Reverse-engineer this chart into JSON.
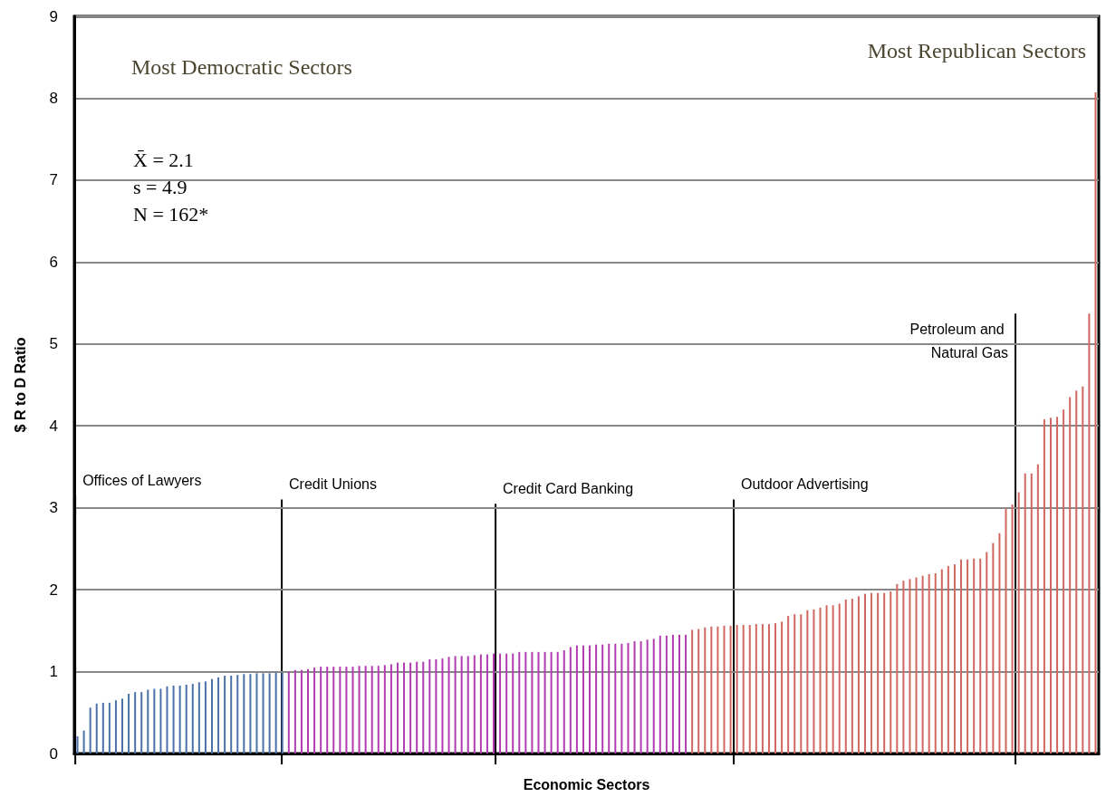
{
  "chart_data": {
    "type": "bar",
    "xlabel": "Economic Sectors",
    "ylabel": "$ R to D Ratio",
    "ylim": [
      0,
      9
    ],
    "yticks": [
      0,
      1,
      2,
      3,
      4,
      5,
      6,
      7,
      8,
      9
    ],
    "tick_labels": "y",
    "grid": "y",
    "categories": [
      null,
      null,
      null,
      null,
      null,
      null,
      null,
      null,
      null,
      null,
      null,
      null,
      null,
      null,
      null,
      null,
      null,
      null,
      null,
      null,
      null,
      null,
      null,
      null,
      null,
      null,
      null,
      null,
      null,
      null,
      null,
      null,
      null,
      null,
      null,
      null,
      null,
      null,
      null,
      null,
      null,
      null,
      null,
      null,
      null,
      null,
      null,
      null,
      null,
      null,
      null,
      null,
      null,
      null,
      null,
      null,
      null,
      null,
      null,
      null,
      null,
      null,
      null,
      null,
      null,
      null,
      null,
      null,
      null,
      null,
      null,
      null,
      null,
      null,
      null,
      null,
      null,
      null,
      null,
      null,
      null,
      null,
      null,
      null,
      null,
      null,
      null,
      null,
      null,
      null,
      null,
      null,
      null,
      null,
      null,
      null,
      null,
      null,
      null,
      null,
      null,
      null,
      null,
      null,
      null,
      null,
      null,
      null,
      null,
      null,
      null,
      null,
      null,
      null,
      null,
      null,
      null,
      null,
      null,
      null,
      null,
      null,
      null,
      null,
      null,
      null,
      null,
      null,
      null,
      null,
      null,
      null,
      null,
      null,
      null,
      null,
      null,
      null,
      null,
      null,
      null,
      null,
      null,
      null,
      null,
      null,
      null,
      null,
      null,
      null,
      null,
      null,
      null,
      null,
      null,
      null,
      null,
      null,
      null,
      null
    ],
    "values": [
      0.21,
      0.28,
      0.56,
      0.61,
      0.62,
      0.62,
      0.65,
      0.67,
      0.73,
      0.75,
      0.75,
      0.78,
      0.79,
      0.79,
      0.82,
      0.83,
      0.83,
      0.84,
      0.85,
      0.87,
      0.88,
      0.91,
      0.93,
      0.95,
      0.95,
      0.96,
      0.97,
      0.97,
      0.98,
      0.98,
      0.98,
      0.99,
      0.99,
      1.0,
      1.02,
      1.02,
      1.03,
      1.05,
      1.06,
      1.06,
      1.06,
      1.06,
      1.06,
      1.06,
      1.07,
      1.07,
      1.07,
      1.07,
      1.08,
      1.09,
      1.11,
      1.11,
      1.11,
      1.12,
      1.12,
      1.15,
      1.15,
      1.16,
      1.18,
      1.19,
      1.19,
      1.19,
      1.2,
      1.21,
      1.21,
      1.22,
      1.22,
      1.22,
      1.22,
      1.24,
      1.24,
      1.24,
      1.24,
      1.24,
      1.24,
      1.24,
      1.26,
      1.3,
      1.32,
      1.32,
      1.32,
      1.33,
      1.33,
      1.34,
      1.34,
      1.34,
      1.35,
      1.37,
      1.37,
      1.39,
      1.4,
      1.44,
      1.44,
      1.45,
      1.45,
      1.45,
      1.51,
      1.52,
      1.54,
      1.55,
      1.55,
      1.56,
      1.56,
      1.57,
      1.57,
      1.57,
      1.58,
      1.58,
      1.58,
      1.59,
      1.61,
      1.68,
      1.7,
      1.7,
      1.75,
      1.76,
      1.78,
      1.81,
      1.81,
      1.83,
      1.88,
      1.89,
      1.92,
      1.95,
      1.96,
      1.96,
      1.96,
      1.98,
      2.07,
      2.11,
      2.13,
      2.15,
      2.17,
      2.19,
      2.2,
      2.25,
      2.29,
      2.31,
      2.37,
      2.37,
      2.38,
      2.38,
      2.46,
      2.57,
      2.69,
      2.99,
      3.04,
      3.19,
      3.42,
      3.42,
      3.53,
      4.08,
      4.1,
      4.11,
      4.2,
      4.35,
      4.43,
      4.48,
      5.37,
      8.07
    ],
    "colors": [
      "#4a72a8",
      "#4a72a8",
      "#4a72a8",
      "#4a72a8",
      "#4a72a8",
      "#4a72a8",
      "#4a72a8",
      "#4a72a8",
      "#4a72a8",
      "#4a72a8",
      "#4a72a8",
      "#4a72a8",
      "#4a72a8",
      "#4a72a8",
      "#4a72a8",
      "#4a72a8",
      "#4a72a8",
      "#4a72a8",
      "#4a72a8",
      "#4a72a8",
      "#4a72a8",
      "#4a72a8",
      "#4a72a8",
      "#4a72a8",
      "#4a72a8",
      "#4a72a8",
      "#4a72a8",
      "#4a72a8",
      "#4a72a8",
      "#4a72a8",
      "#4a72a8",
      "#4a72a8",
      "#4a72a8",
      "#b03cb0",
      "#b03cb0",
      "#b03cb0",
      "#b03cb0",
      "#b03cb0",
      "#b03cb0",
      "#b03cb0",
      "#b03cb0",
      "#b03cb0",
      "#b03cb0",
      "#b03cb0",
      "#b03cb0",
      "#b03cb0",
      "#b03cb0",
      "#b03cb0",
      "#b03cb0",
      "#b03cb0",
      "#b03cb0",
      "#b03cb0",
      "#b03cb0",
      "#b03cb0",
      "#b03cb0",
      "#b03cb0",
      "#b03cb0",
      "#b03cb0",
      "#b03cb0",
      "#b03cb0",
      "#b03cb0",
      "#b03cb0",
      "#b03cb0",
      "#b03cb0",
      "#b03cb0",
      "#b03cb0",
      "#b03cb0",
      "#b03cb0",
      "#b03cb0",
      "#b03cb0",
      "#b03cb0",
      "#b03cb0",
      "#b03cb0",
      "#b03cb0",
      "#b03cb0",
      "#b03cb0",
      "#b03cb0",
      "#b03cb0",
      "#b03cb0",
      "#b03cb0",
      "#b03cb0",
      "#b03cb0",
      "#b03cb0",
      "#b03cb0",
      "#b03cb0",
      "#b03cb0",
      "#b03cb0",
      "#b03cb0",
      "#b03cb0",
      "#b03cb0",
      "#b03cb0",
      "#b03cb0",
      "#b03cb0",
      "#b03cb0",
      "#b03cb0",
      "#b03cb0",
      "#d06860",
      "#d06860",
      "#d06860",
      "#d06860",
      "#d06860",
      "#d06860",
      "#d06860",
      "#d06860",
      "#d06860",
      "#d06860",
      "#d06860",
      "#d06860",
      "#d06860",
      "#d06860",
      "#d06860",
      "#d06860",
      "#d06860",
      "#d06860",
      "#d06860",
      "#d06860",
      "#d06860",
      "#d06860",
      "#d06860",
      "#d06860",
      "#d06860",
      "#d06860",
      "#d06860",
      "#d06860",
      "#d06860",
      "#d06860",
      "#d06860",
      "#d06860",
      "#d06860",
      "#d06860",
      "#d06860",
      "#d06860",
      "#d06860",
      "#d06860",
      "#d06860",
      "#d06860",
      "#d06860",
      "#d06860",
      "#d06860",
      "#d06860",
      "#d06860",
      "#d06860",
      "#d06860",
      "#d06860",
      "#d06860",
      "#d06860",
      "#d06860",
      "#d06860",
      "#d06860",
      "#d06860",
      "#d06860",
      "#d06860",
      "#d06860",
      "#d06860",
      "#d06860",
      "#d06860",
      "#d06860",
      "#d06860",
      "#d06860",
      "#d06860"
    ],
    "annotations": [
      "Most Democratic Sectors",
      "Most Republican Sectors",
      "X̄ = 2.1",
      "s = 4.9",
      "N = 162*",
      "Offices of Lawyers",
      "Credit Unions",
      "Credit Card Banking",
      "Outdoor Advertising",
      "Petroleum and Natural Gas"
    ]
  }
}
